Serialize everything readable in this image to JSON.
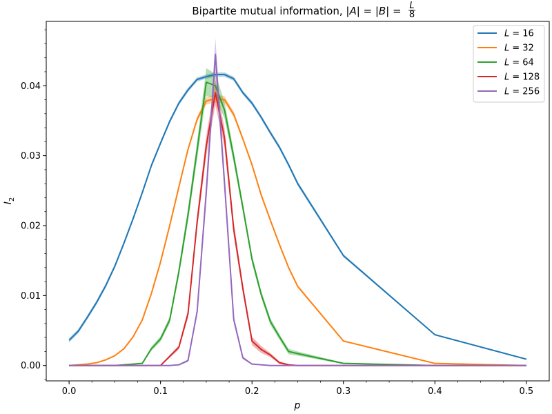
{
  "chart_data": {
    "type": "line",
    "title": "Bipartite mutual information, |A| = |B| = L/8",
    "title_parts": {
      "prefix": "Bipartite mutual information, ",
      "equation": "|A| = |B| = ",
      "frac_num": "L",
      "frac_den": "8"
    },
    "xlabel": "p",
    "ylabel": "I",
    "ylabel_sub": "2",
    "xlim": [
      -0.025,
      0.525
    ],
    "ylim": [
      -0.0022,
      0.0492
    ],
    "xticks": [
      0.0,
      0.1,
      0.2,
      0.3,
      0.4,
      0.5
    ],
    "xtick_labels": [
      "0.0",
      "0.1",
      "0.2",
      "0.3",
      "0.4",
      "0.5"
    ],
    "yticks": [
      0.0,
      0.01,
      0.02,
      0.03,
      0.04
    ],
    "ytick_labels": [
      "0.00",
      "0.01",
      "0.02",
      "0.03",
      "0.04"
    ],
    "legend_position": "top-right",
    "series": [
      {
        "name": "L = 16",
        "legend_label": "L",
        "legend_value": "= 16",
        "color": "#1f77b4",
        "x": [
          0.0,
          0.01,
          0.02,
          0.03,
          0.04,
          0.05,
          0.06,
          0.07,
          0.08,
          0.09,
          0.1,
          0.11,
          0.12,
          0.13,
          0.14,
          0.15,
          0.16,
          0.17,
          0.18,
          0.19,
          0.2,
          0.21,
          0.22,
          0.23,
          0.24,
          0.25,
          0.3,
          0.4,
          0.5
        ],
        "y": [
          0.0036,
          0.0049,
          0.0069,
          0.009,
          0.0114,
          0.0142,
          0.0175,
          0.021,
          0.0247,
          0.0286,
          0.0318,
          0.0349,
          0.0375,
          0.0394,
          0.0409,
          0.0413,
          0.0416,
          0.0416,
          0.041,
          0.039,
          0.0375,
          0.0355,
          0.0333,
          0.0312,
          0.0287,
          0.026,
          0.0157,
          0.0044,
          0.0009
        ],
        "band": [
          0.0003,
          0.0003,
          0.0003,
          0.0003,
          0.0003,
          0.0003,
          0.0003,
          0.0003,
          0.0003,
          0.0003,
          0.0003,
          0.0003,
          0.0003,
          0.0003,
          0.0003,
          0.0003,
          0.0003,
          0.0003,
          0.0003,
          0.0003,
          0.0003,
          0.0003,
          0.0003,
          0.0003,
          0.0003,
          0.0003,
          0.0002,
          0.0001,
          0.0001
        ]
      },
      {
        "name": "L = 32",
        "legend_label": "L",
        "legend_value": "= 32",
        "color": "#ff7f0e",
        "x": [
          0.0,
          0.01,
          0.02,
          0.03,
          0.04,
          0.05,
          0.06,
          0.07,
          0.08,
          0.09,
          0.1,
          0.11,
          0.12,
          0.13,
          0.14,
          0.15,
          0.16,
          0.17,
          0.18,
          0.19,
          0.2,
          0.21,
          0.22,
          0.23,
          0.24,
          0.25,
          0.3,
          0.4,
          0.5
        ],
        "y": [
          0.0,
          0.0001,
          0.0002,
          0.0004,
          0.0008,
          0.0014,
          0.0024,
          0.0041,
          0.0065,
          0.0103,
          0.0148,
          0.02,
          0.0255,
          0.0309,
          0.0352,
          0.0378,
          0.0382,
          0.038,
          0.0359,
          0.0324,
          0.0287,
          0.0244,
          0.0208,
          0.0173,
          0.014,
          0.0113,
          0.0035,
          0.0003,
          0.0
        ],
        "band": [
          0.0,
          0.0,
          0.0,
          0.0,
          0.0001,
          0.0001,
          0.0001,
          0.0001,
          0.0002,
          0.0002,
          0.0002,
          0.0002,
          0.0003,
          0.0003,
          0.0004,
          0.0005,
          0.0006,
          0.0005,
          0.0004,
          0.0003,
          0.0003,
          0.0003,
          0.0002,
          0.0002,
          0.0002,
          0.0002,
          0.0001,
          0.0,
          0.0
        ]
      },
      {
        "name": "L = 64",
        "legend_label": "L",
        "legend_value": "= 64",
        "color": "#2ca02c",
        "x": [
          0.0,
          0.05,
          0.08,
          0.09,
          0.1,
          0.11,
          0.12,
          0.13,
          0.14,
          0.15,
          0.16,
          0.17,
          0.18,
          0.19,
          0.2,
          0.21,
          0.22,
          0.23,
          0.24,
          0.25,
          0.3,
          0.4,
          0.5
        ],
        "y": [
          0.0,
          0.0,
          0.0003,
          0.0024,
          0.0038,
          0.0065,
          0.0134,
          0.0215,
          0.0308,
          0.0405,
          0.04,
          0.0365,
          0.0298,
          0.0226,
          0.0152,
          0.0102,
          0.0063,
          0.0041,
          0.002,
          0.0017,
          0.0003,
          0.0,
          0.0
        ],
        "band": [
          0.0,
          0.0,
          0.0001,
          0.0003,
          0.0004,
          0.0005,
          0.0007,
          0.001,
          0.0013,
          0.002,
          0.0017,
          0.0012,
          0.0009,
          0.0007,
          0.0006,
          0.0005,
          0.0005,
          0.0004,
          0.0004,
          0.0003,
          0.0001,
          0.0,
          0.0
        ]
      },
      {
        "name": "L = 128",
        "legend_label": "L",
        "legend_value": "= 128",
        "color": "#d62728",
        "x": [
          0.0,
          0.1,
          0.11,
          0.12,
          0.13,
          0.14,
          0.15,
          0.16,
          0.17,
          0.18,
          0.19,
          0.2,
          0.21,
          0.22,
          0.23,
          0.24,
          0.25,
          0.3,
          0.5
        ],
        "y": [
          0.0,
          0.0,
          0.0013,
          0.0026,
          0.0074,
          0.0205,
          0.0314,
          0.039,
          0.0325,
          0.0195,
          0.011,
          0.0035,
          0.0023,
          0.0015,
          0.0004,
          0.0001,
          0.0,
          0.0,
          0.0
        ],
        "band": [
          0.0,
          0.0,
          0.0002,
          0.0003,
          0.0006,
          0.001,
          0.0014,
          0.0018,
          0.0014,
          0.001,
          0.0007,
          0.0006,
          0.0005,
          0.0003,
          0.0002,
          0.0001,
          0.0,
          0.0,
          0.0
        ]
      },
      {
        "name": "L = 256",
        "legend_label": "L",
        "legend_value": "= 256",
        "color": "#9467bd",
        "x": [
          0.0,
          0.11,
          0.12,
          0.13,
          0.14,
          0.15,
          0.16,
          0.17,
          0.18,
          0.19,
          0.2,
          0.21,
          0.22,
          0.25,
          0.3,
          0.5
        ],
        "y": [
          0.0,
          0.0,
          0.0001,
          0.0007,
          0.0077,
          0.0248,
          0.0445,
          0.026,
          0.0066,
          0.0011,
          0.0002,
          0.0001,
          0.0,
          0.0,
          0.0,
          0.0
        ],
        "band": [
          0.0,
          0.0,
          0.0001,
          0.0002,
          0.0006,
          0.0016,
          0.0023,
          0.0015,
          0.0006,
          0.0002,
          0.0001,
          0.0,
          0.0,
          0.0,
          0.0,
          0.0
        ]
      }
    ]
  }
}
